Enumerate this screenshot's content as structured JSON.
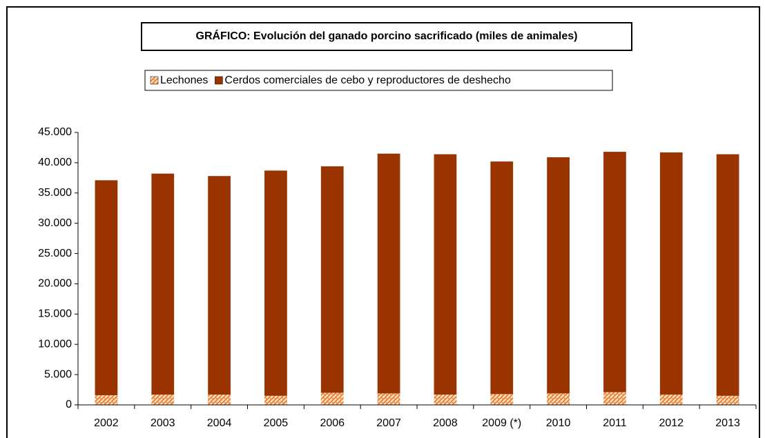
{
  "chart_data": {
    "type": "stacked_bar",
    "title": "GRÁFICO: Evolución del ganado porcino sacrificado (miles de animales)",
    "categories": [
      "2002",
      "2003",
      "2004",
      "2005",
      "2006",
      "2007",
      "2008",
      "2009 (*)",
      "2010",
      "2011",
      "2012",
      "2013"
    ],
    "series": [
      {
        "name": "Lechones",
        "color": "#f4a460",
        "values": [
          1600,
          1700,
          1700,
          1500,
          2000,
          1900,
          1700,
          1800,
          1900,
          2100,
          1700,
          1500
        ]
      },
      {
        "name": "Cerdos comerciales de cebo y reproductores de deshecho",
        "color": "#993300",
        "values": [
          35500,
          36500,
          36100,
          37200,
          37400,
          39600,
          39700,
          38400,
          39000,
          39700,
          40000,
          39900
        ]
      }
    ],
    "ylim": [
      0,
      45000
    ],
    "yticks": [
      0,
      {
        "value": 5000,
        "label": "5.000"
      },
      {
        "value": 10000,
        "label": "10.000"
      },
      {
        "value": 15000,
        "label": "15.000"
      },
      {
        "value": 20000,
        "label": "20.000"
      },
      {
        "value": 25000,
        "label": "25.000"
      },
      {
        "value": 30000,
        "label": "30.000"
      },
      {
        "value": 35000,
        "label": "35.000"
      },
      {
        "value": 40000,
        "label": "40.000"
      },
      {
        "value": 45000,
        "label": "45.000"
      }
    ],
    "grid": false
  }
}
